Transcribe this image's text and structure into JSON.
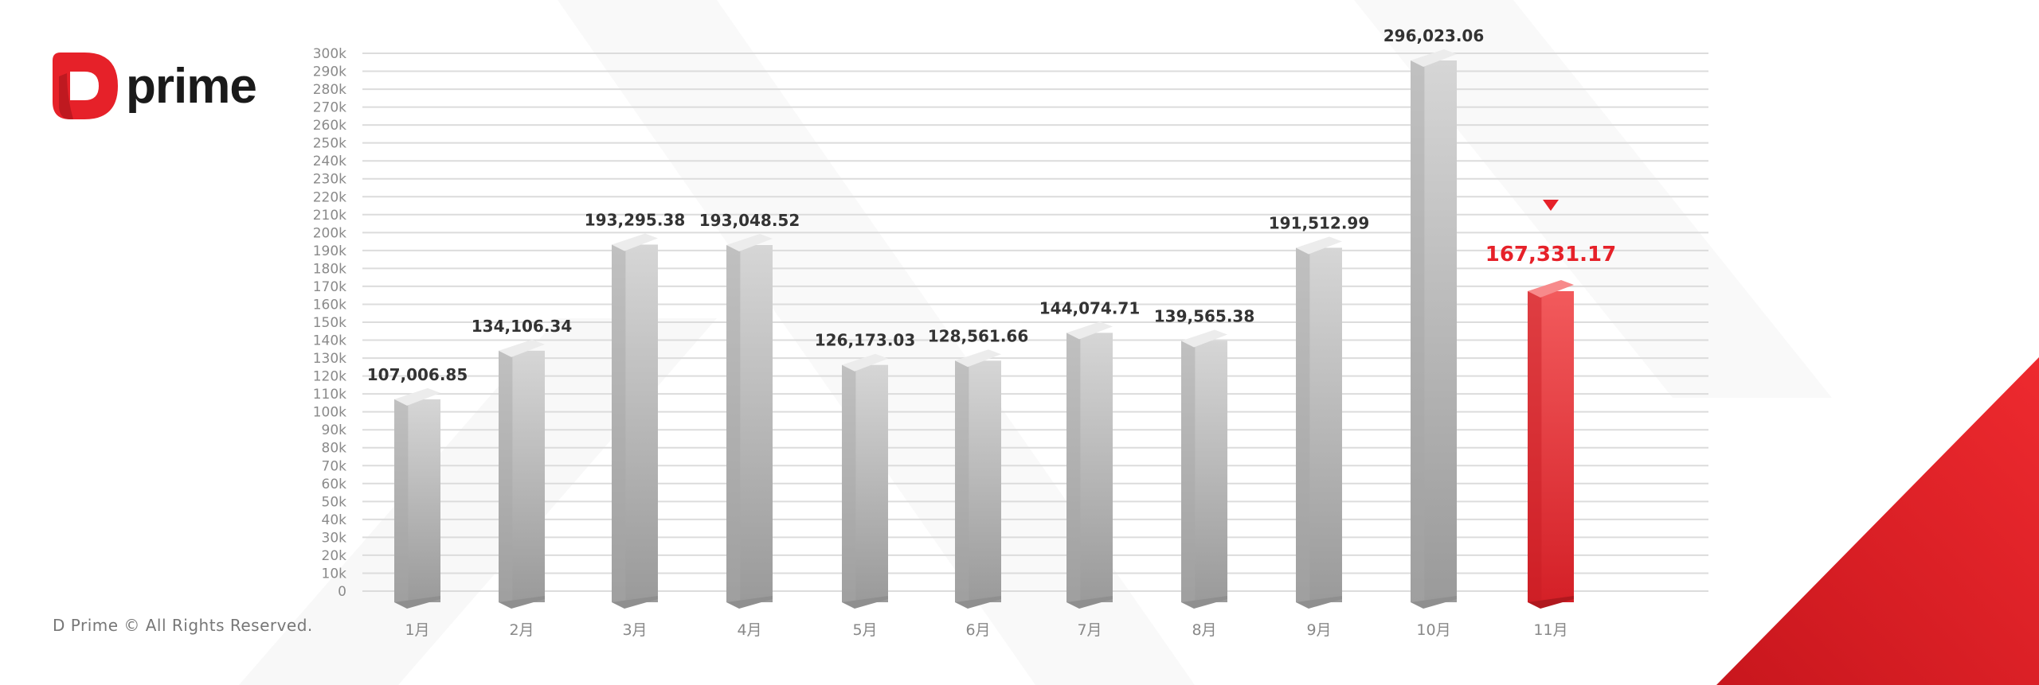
{
  "brand": {
    "name": "prime",
    "logo_letter": "D",
    "accent": "#e62129"
  },
  "footer": {
    "copyright": "D Prime © All Rights Reserved."
  },
  "chart_data": {
    "type": "bar",
    "title": "",
    "xlabel": "",
    "ylabel": "",
    "categories": [
      "1月",
      "2月",
      "3月",
      "4月",
      "5月",
      "6月",
      "7月",
      "8月",
      "9月",
      "10月",
      "11月"
    ],
    "values": [
      107006.85,
      134106.34,
      193295.38,
      193048.52,
      126173.03,
      128561.66,
      144074.71,
      139565.38,
      191512.99,
      296023.06,
      167331.17
    ],
    "data_labels": [
      "107,006.85",
      "134,106.34",
      "193,295.38",
      "193,048.52",
      "126,173.03",
      "128,561.66",
      "144,074.71",
      "139,565.38",
      "191,512.99",
      "296,023.06",
      "167,331.17"
    ],
    "highlight_index": 10,
    "highlight_color": "#e62129",
    "bar_color": "#b8b8b8",
    "ylim": [
      0,
      300000
    ],
    "ytick_step": 10000,
    "ytick_labels": [
      "0",
      "10k",
      "20k",
      "30k",
      "40k",
      "50k",
      "60k",
      "70k",
      "80k",
      "90k",
      "100k",
      "110k",
      "120k",
      "130k",
      "140k",
      "150k",
      "160k",
      "170k",
      "180k",
      "190k",
      "200k",
      "210k",
      "220k",
      "230k",
      "240k",
      "250k",
      "260k",
      "270k",
      "280k",
      "290k",
      "300k"
    ],
    "grid": true,
    "legend": "none"
  }
}
